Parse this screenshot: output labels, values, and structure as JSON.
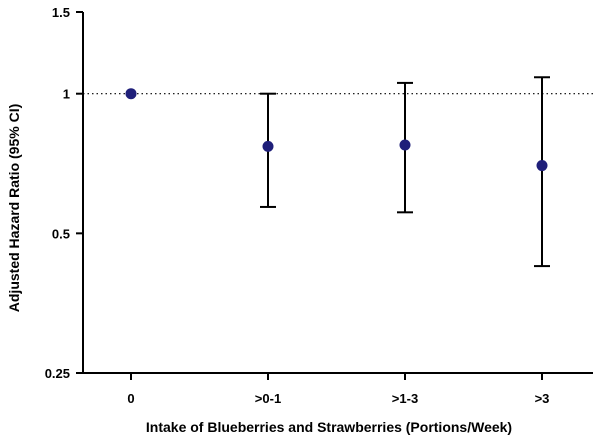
{
  "chart_data": {
    "type": "scatter",
    "subtype": "forest-plot-with-error-bars",
    "title": "",
    "xlabel": "Intake of Blueberries and Strawberries (Portions/Week)",
    "ylabel": "Adjusted Hazard Ratio (95% CI)",
    "yscale": "log",
    "ylim": [
      0.25,
      1.5
    ],
    "yticks": [
      0.25,
      0.5,
      1,
      1.5
    ],
    "ytick_labels": [
      "0.25",
      "0.5",
      "1",
      "1.5"
    ],
    "reference_line": {
      "y": 1,
      "style": "dotted"
    },
    "grid": false,
    "categories": [
      "0",
      ">0-1",
      ">1-3",
      ">3"
    ],
    "values": [
      1.0,
      0.77,
      0.775,
      0.7
    ],
    "ci_lower": [
      1.0,
      0.57,
      0.555,
      0.425
    ],
    "ci_upper": [
      1.0,
      1.0,
      1.055,
      1.085
    ],
    "colors": {
      "point": "#1f1f7a",
      "axis": "#000000",
      "error_bar": "#000000"
    }
  }
}
